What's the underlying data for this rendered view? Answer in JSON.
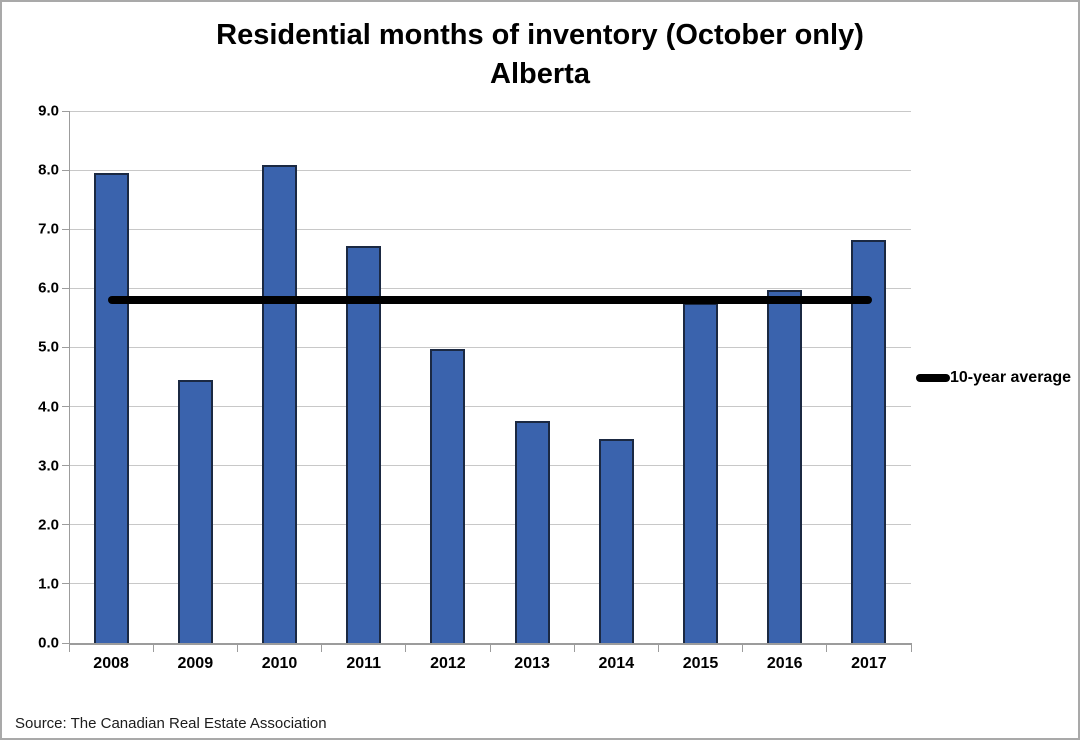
{
  "chart_data": {
    "type": "bar",
    "title": {
      "line1": "Residential months of inventory (October only)",
      "line2": "Alberta"
    },
    "categories": [
      "2008",
      "2009",
      "2010",
      "2011",
      "2012",
      "2013",
      "2014",
      "2015",
      "2016",
      "2017"
    ],
    "values": [
      7.95,
      4.45,
      8.08,
      6.72,
      4.98,
      3.76,
      3.45,
      5.75,
      5.98,
      6.82
    ],
    "average_line": {
      "label": "10-year average",
      "value": 5.8
    },
    "y_axis": {
      "min": 0,
      "max": 9,
      "tick_labels": [
        "0.0",
        "1.0",
        "2.0",
        "3.0",
        "4.0",
        "5.0",
        "6.0",
        "7.0",
        "8.0",
        "9.0"
      ]
    },
    "legend": {
      "position": "right",
      "label": "10-year average"
    },
    "grid": true,
    "colors": {
      "bar_fill": "#3A63AD",
      "bar_border": "#1B2942",
      "average_line": "#000000",
      "gridline": "#C8C8C8",
      "axis": "#9C9C9C"
    }
  },
  "source_note": "Source: The Canadian Real Estate Association"
}
